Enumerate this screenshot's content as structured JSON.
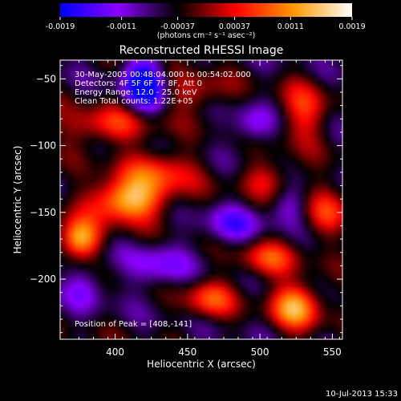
{
  "chart_data": {
    "type": "heatmap",
    "title": "Reconstructed RHESSI Image",
    "xlabel": "Heliocentric X (arcsec)",
    "ylabel": "Heliocentric Y (arcsec)",
    "xlim": [
      362,
      557
    ],
    "ylim": [
      -245,
      -36
    ],
    "x_ticks": [
      400,
      450,
      500,
      550
    ],
    "y_ticks": [
      -50,
      -100,
      -150,
      -200
    ],
    "colorbar": {
      "min": -0.0019,
      "max": 0.0019,
      "ticks": [
        {
          "value": -0.0019,
          "label": "-0.0019"
        },
        {
          "value": -0.0011,
          "label": "-0.0011"
        },
        {
          "value": -0.00037,
          "label": "-0.00037"
        },
        {
          "value": 0.00037,
          "label": "0.00037"
        },
        {
          "value": 0.0011,
          "label": "0.0011"
        },
        {
          "value": 0.0019,
          "label": "0.0019"
        }
      ],
      "unit_label": "(photons cm⁻² s⁻¹ asec⁻²)",
      "colors": [
        "#0000ff",
        "#8c00ff",
        "#000000",
        "#ff0000",
        "#ff9a00",
        "#ffffff"
      ]
    },
    "annotations": [
      "30-May-2005 00:48:04.000 to 00:54:02.000",
      "Detectors: 4F 5F 6F 7F 8F, Att 0",
      "Energy Range: 12.0 - 25.0 keV",
      "Clean    Total counts: 1.22E+05"
    ],
    "peak_label": "Position of Peak = [408,-141]",
    "peak": {
      "x": 408,
      "y": -141
    },
    "bright_sources": [
      {
        "x": 408,
        "y": -141,
        "level": 1.0,
        "sx": 18,
        "sy": 11
      },
      {
        "x": 375,
        "y": -170,
        "level": 0.95,
        "sx": 10,
        "sy": 10
      },
      {
        "x": 395,
        "y": -85,
        "level": 0.55,
        "sx": 22,
        "sy": 10
      },
      {
        "x": 430,
        "y": -120,
        "level": 0.55,
        "sx": 18,
        "sy": 12
      },
      {
        "x": 505,
        "y": -185,
        "level": 0.55,
        "sx": 14,
        "sy": 10
      },
      {
        "x": 525,
        "y": -220,
        "level": 0.9,
        "sx": 12,
        "sy": 12
      },
      {
        "x": 465,
        "y": -215,
        "level": 0.6,
        "sx": 12,
        "sy": 10
      },
      {
        "x": 530,
        "y": -75,
        "level": 0.5,
        "sx": 12,
        "sy": 16
      },
      {
        "x": 505,
        "y": -125,
        "level": 0.4,
        "sx": 14,
        "sy": 10
      },
      {
        "x": 545,
        "y": -150,
        "level": 0.45,
        "sx": 12,
        "sy": 14
      },
      {
        "x": 455,
        "y": -60,
        "level": 0.4,
        "sx": 16,
        "sy": 10
      }
    ],
    "dark_sources": [
      {
        "x": 420,
        "y": -55,
        "level": -0.95,
        "sx": 10,
        "sy": 14
      },
      {
        "x": 495,
        "y": -85,
        "level": -0.4,
        "sx": 10,
        "sy": 10
      },
      {
        "x": 480,
        "y": -160,
        "level": -0.45,
        "sx": 14,
        "sy": 10
      },
      {
        "x": 430,
        "y": -190,
        "level": -0.4,
        "sx": 14,
        "sy": 12
      },
      {
        "x": 520,
        "y": -145,
        "level": -0.35,
        "sx": 10,
        "sy": 10
      },
      {
        "x": 380,
        "y": -205,
        "level": -0.35,
        "sx": 10,
        "sy": 12
      }
    ]
  },
  "timestamp": "10-Jul-2013 15:33"
}
